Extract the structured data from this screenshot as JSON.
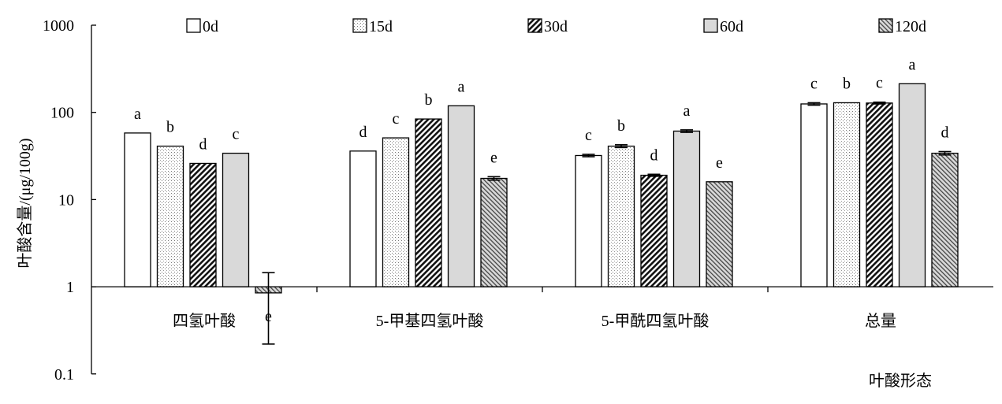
{
  "chart_data": {
    "type": "bar",
    "scale": "log",
    "ylim": [
      0.1,
      1000
    ],
    "y_ticks": [
      {
        "value": 1000,
        "label": "1000"
      },
      {
        "value": 100,
        "label": "100"
      },
      {
        "value": 10,
        "label": "10"
      },
      {
        "value": 1,
        "label": "1"
      },
      {
        "value": 0.1,
        "label": "0.1"
      }
    ],
    "ylabel": "叶酸含量/(μg/100g)",
    "xlabel": "叶酸形态",
    "grid": false,
    "legend_position": "top",
    "categories": [
      "四氢叶酸",
      "5-甲基四氢叶酸",
      "5-甲酰四氢叶酸",
      "总量"
    ],
    "series": [
      {
        "name": "0d",
        "pattern": "none",
        "values": [
          58,
          36,
          32,
          125
        ],
        "errors": [
          0,
          0,
          1,
          4
        ],
        "letters": [
          "a",
          "d",
          "c",
          "c"
        ]
      },
      {
        "name": "15d",
        "pattern": "dots",
        "values": [
          41,
          51,
          41,
          129
        ],
        "errors": [
          0,
          0,
          1.5,
          0
        ],
        "letters": [
          "b",
          "c",
          "b",
          "b"
        ]
      },
      {
        "name": "30d",
        "pattern": "hatch-dense",
        "values": [
          26,
          84,
          19,
          128
        ],
        "errors": [
          0,
          0,
          0.5,
          3
        ],
        "letters": [
          "d",
          "b",
          "d",
          "c"
        ]
      },
      {
        "name": "60d",
        "pattern": "gray",
        "values": [
          34,
          119,
          61,
          213
        ],
        "errors": [
          0,
          0,
          2,
          0
        ],
        "letters": [
          "c",
          "a",
          "a",
          "a"
        ]
      },
      {
        "name": "120d",
        "pattern": "hatch-gray",
        "values": [
          0.85,
          17.5,
          16,
          34
        ],
        "errors": [
          0,
          0.8,
          0,
          1.5
        ],
        "err_low": [
          0.22,
          null,
          null,
          null
        ],
        "err_high": [
          1.45,
          null,
          null,
          null
        ],
        "letters": [
          "e",
          "e",
          "e",
          "d"
        ]
      }
    ]
  }
}
